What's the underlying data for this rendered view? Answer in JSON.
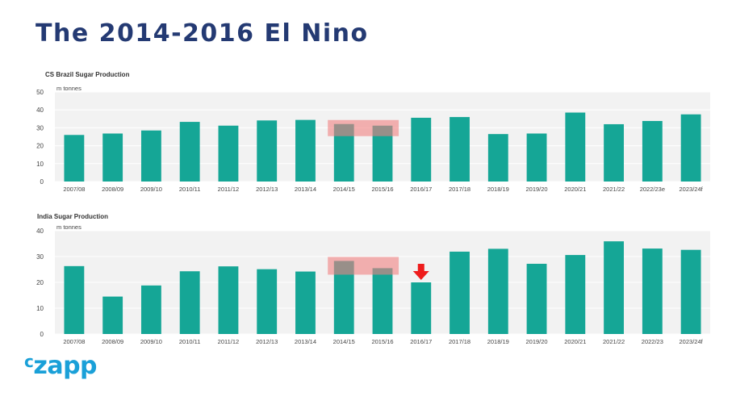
{
  "slide": {
    "title": "The 2014-2016 El Nino",
    "logo": "czapp"
  },
  "colors": {
    "bar": "#15a696",
    "highlight": "#f08080",
    "arrow": "#ee1c1c",
    "plot_bg": "#f2f2f2",
    "title": "#243a73",
    "logo": "#1aa0d8"
  },
  "chart_data": [
    {
      "type": "bar",
      "title": "CS Brazil Sugar Production",
      "unit_label": "m tonnes",
      "categories": [
        "2007/08",
        "2008/09",
        "2009/10",
        "2010/11",
        "2011/12",
        "2012/13",
        "2013/14",
        "2014/15",
        "2015/16",
        "2016/17",
        "2017/18",
        "2018/19",
        "2019/20",
        "2020/21",
        "2021/22",
        "2022/23e",
        "2023/24f"
      ],
      "values": [
        26,
        26.8,
        28.5,
        33.3,
        31.2,
        34.1,
        34.4,
        32.1,
        31.2,
        35.6,
        36,
        26.5,
        26.8,
        38.5,
        32,
        33.8,
        37.5
      ],
      "ylim": [
        0,
        50
      ],
      "yticks": [
        0,
        10,
        20,
        30,
        40,
        50
      ],
      "grid": true,
      "highlight_categories": [
        "2014/15",
        "2015/16"
      ]
    },
    {
      "type": "bar",
      "title": "India Sugar Production",
      "unit_label": "m tonnes",
      "categories": [
        "2007/08",
        "2008/09",
        "2009/10",
        "2010/11",
        "2011/12",
        "2012/13",
        "2013/14",
        "2014/15",
        "2015/16",
        "2016/17",
        "2017/18",
        "2018/19",
        "2019/20",
        "2020/21",
        "2021/22",
        "2022/23",
        "2023/24f"
      ],
      "values": [
        26.3,
        14.5,
        18.8,
        24.3,
        26.2,
        25.1,
        24.2,
        28.3,
        25.5,
        20,
        31.9,
        33,
        27.2,
        30.6,
        35.9,
        33.1,
        32.6
      ],
      "ylim": [
        0,
        40
      ],
      "yticks": [
        0,
        10,
        20,
        30,
        40
      ],
      "grid": true,
      "highlight_categories": [
        "2014/15",
        "2015/16"
      ],
      "arrow_category": "2016/17"
    }
  ]
}
